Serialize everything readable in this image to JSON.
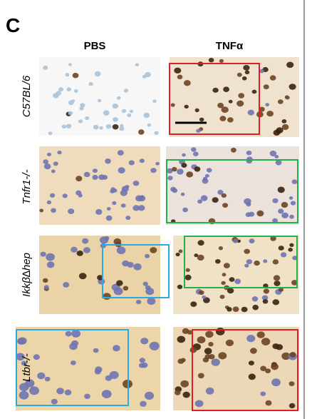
{
  "panel": "C",
  "columns": [
    "PBS",
    "TNFα"
  ],
  "rows": [
    "C57BL/6",
    "Tnfr1-/-",
    "Ikkβ∆hep",
    "Ltbr-/-"
  ]
}
